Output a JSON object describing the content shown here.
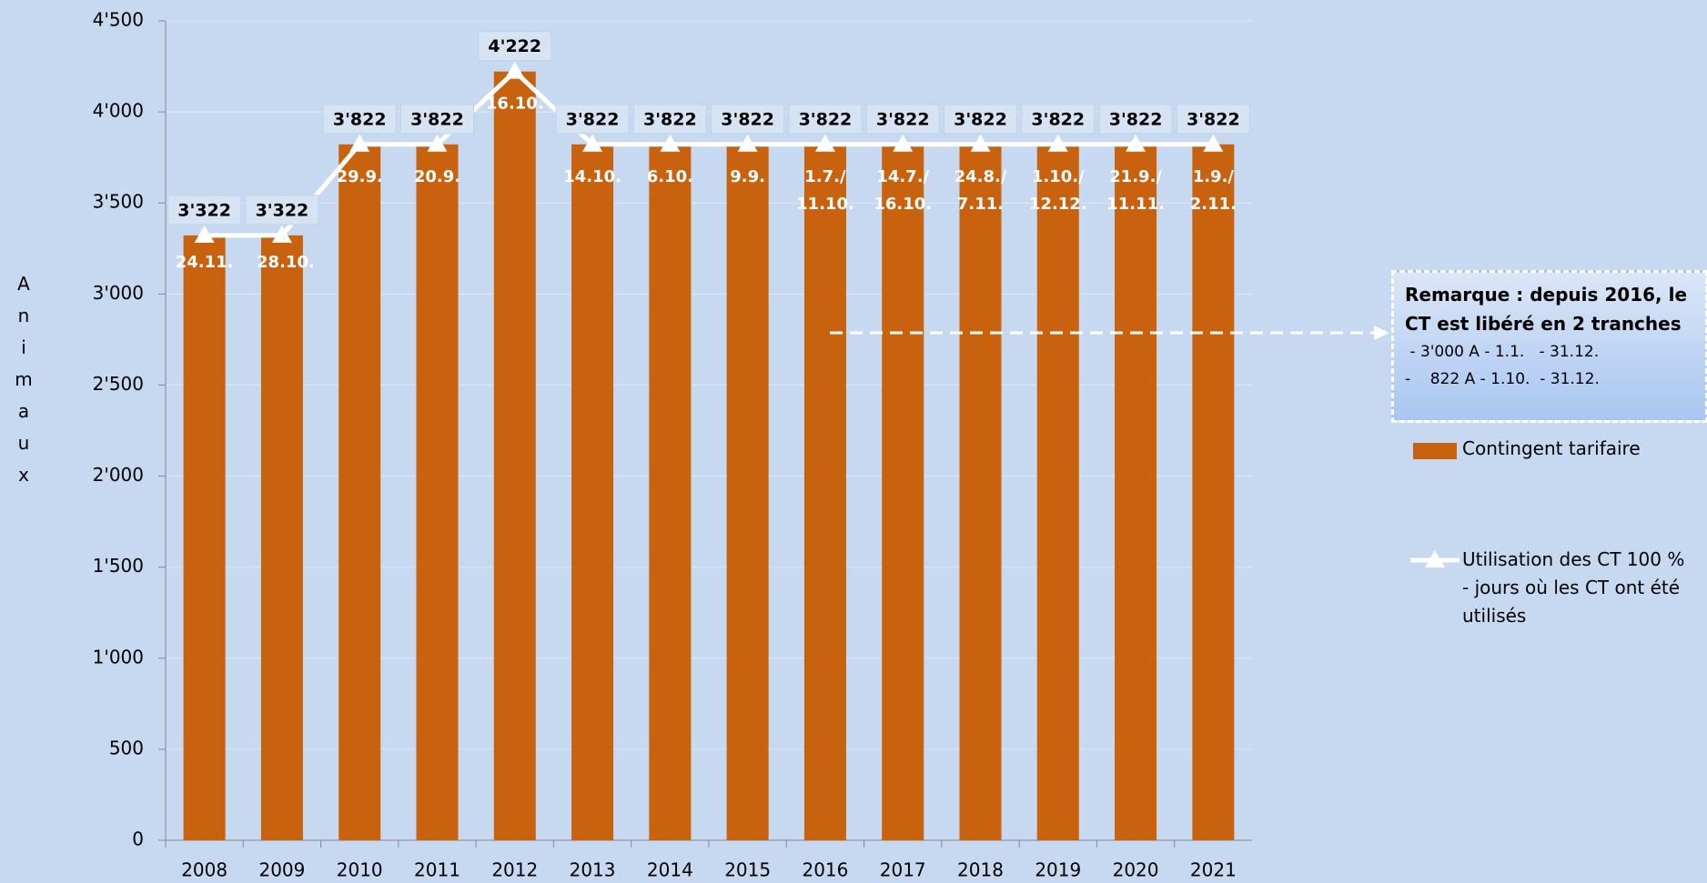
{
  "chart_data": {
    "type": "bar-line",
    "y_label": "Animaux",
    "categories": [
      "2008",
      "2009",
      "2010",
      "2011",
      "2012",
      "2013",
      "2014",
      "2015",
      "2016",
      "2017",
      "2018",
      "2019",
      "2020",
      "2021"
    ],
    "series": [
      {
        "name": "Contingent tarifaire",
        "type": "bar",
        "color": "#c8620e",
        "values": [
          3322,
          3322,
          3822,
          3822,
          4222,
          3822,
          3822,
          3822,
          3822,
          3822,
          3822,
          3822,
          3822,
          3822
        ],
        "value_labels": [
          "3'322",
          "3'322",
          "3'822",
          "3'822",
          "4'222",
          "3'822",
          "3'822",
          "3'822",
          "3'822",
          "3'822",
          "3'822",
          "3'822",
          "3'822",
          "3'822"
        ]
      },
      {
        "name": "Utilisation des CT 100 % - jours où les CT ont été utilisés",
        "type": "line",
        "color": "#ffffff",
        "values": [
          3322,
          3322,
          3822,
          3822,
          4222,
          3822,
          3822,
          3822,
          3822,
          3822,
          3822,
          3822,
          3822,
          3822
        ],
        "point_labels": [
          [
            "24.11."
          ],
          [
            "28.10."
          ],
          [
            "29.9."
          ],
          [
            "20.9."
          ],
          [
            "16.10."
          ],
          [
            "14.10."
          ],
          [
            "6.10."
          ],
          [
            "9.9."
          ],
          [
            "1.7./",
            "11.10."
          ],
          [
            "14.7./",
            "16.10."
          ],
          [
            "24.8./",
            "7.11."
          ],
          [
            "1.10./",
            "12.12."
          ],
          [
            "21.9./",
            "11.11."
          ],
          [
            "1.9./",
            "2.11."
          ]
        ]
      }
    ],
    "ylim": [
      0,
      4500
    ],
    "yticks": [
      0,
      500,
      {
        "value": 1000,
        "label": "1'000"
      },
      {
        "value": 1500,
        "label": "1'500"
      },
      {
        "value": 2000,
        "label": "2'000"
      },
      {
        "value": 2500,
        "label": "2'500"
      },
      {
        "value": 3000,
        "label": "3'000"
      },
      {
        "value": 3500,
        "label": "3'500"
      },
      {
        "value": 4000,
        "label": "4'000"
      },
      {
        "value": 4500,
        "label": "4'500"
      }
    ],
    "grid": true,
    "annotation": {
      "title": "Remarque : depuis 2016, le CT est libéré en 2 tranches",
      "lines": [
        " - 3'000 A - 1.1.   - 31.12.",
        "-    822 A - 1.10.  - 31.12."
      ]
    }
  }
}
